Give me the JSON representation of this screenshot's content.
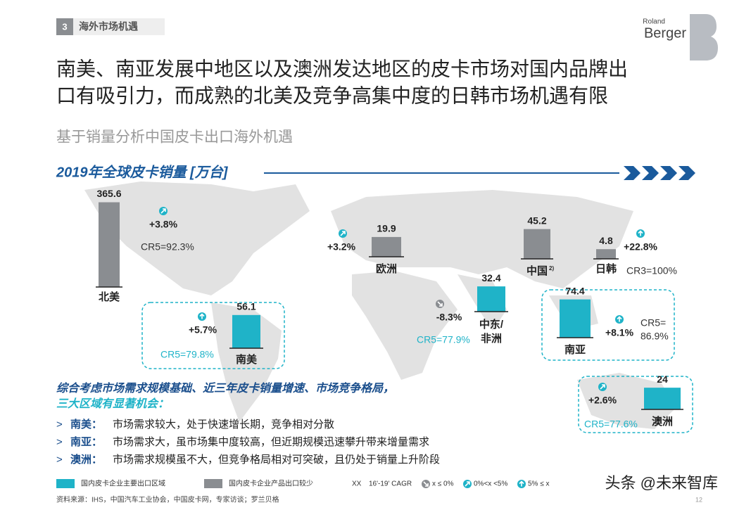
{
  "header": {
    "section_number": "3",
    "section_title": "海外市场机遇",
    "logo_small": "Roland",
    "logo": "Berger"
  },
  "title_lines": [
    "南美、南亚发展中地区以及澳洲发达地区的皮卡市场对国内品牌出",
    "口有吸引力，而成熟的北美及竞争高集中度的日韩市场机遇有限"
  ],
  "subtitle": "基于销量分析中国皮卡出口海外机遇",
  "chart_data": {
    "type": "map-bars",
    "title": "2019年全球皮卡销量 [万台]",
    "regions": [
      {
        "name_lines": [
          "北美"
        ],
        "value": 365.6,
        "cagr": "+3.8%",
        "cagr_class": "mid",
        "cr_lines": [
          "CR5=92.3%"
        ],
        "highlight": false
      },
      {
        "name_lines": [
          "欧洲"
        ],
        "value": 19.9,
        "cagr": "+3.2%",
        "cagr_class": "mid",
        "cr_lines": [],
        "highlight": false
      },
      {
        "name_lines": [
          "中国"
        ],
        "footnote": "2)",
        "value": 45.2,
        "cr_lines": [],
        "highlight": false
      },
      {
        "name_lines": [
          "日韩"
        ],
        "value": 4.8,
        "cagr": "+22.8%",
        "cagr_class": "high",
        "cr_lines": [
          "CR3=100%"
        ],
        "highlight": false
      },
      {
        "name_lines": [
          "南美"
        ],
        "value": 56.1,
        "cagr": "+5.7%",
        "cagr_class": "high",
        "cr_lines": [
          "CR5=79.8%"
        ],
        "highlight": true
      },
      {
        "name_lines": [
          "中东/",
          "非洲"
        ],
        "value": 32.4,
        "cagr": "-8.3%",
        "cagr_class": "low",
        "cr_lines": [
          "CR5=77.9%"
        ],
        "highlight": true
      },
      {
        "name_lines": [
          "南亚"
        ],
        "value": 74.4,
        "cagr": "+8.1%",
        "cagr_class": "high",
        "cr_lines": [
          "CR5=",
          "86.9%"
        ],
        "highlight": true
      },
      {
        "name_lines": [
          "澳洲"
        ],
        "value": 24.0,
        "cagr": "+2.6%",
        "cagr_class": "mid",
        "cr_lines": [
          "CR5=77.6%"
        ],
        "highlight": true
      }
    ],
    "colors": {
      "highlight": "#1fb3c8",
      "normal": "#8a8d91"
    }
  },
  "conclusion": {
    "heading_lines": [
      "综合考虑市场需求规模基础、近三年皮卡销量增速、市场竞争格局，",
      "三大区域有显著机会："
    ],
    "bullets": [
      {
        "region": "南美：",
        "text": "市场需求较大，处于快速增长期，竞争相对分散"
      },
      {
        "region": "南亚：",
        "text": "市场需求大，虽市场集中度较高，但近期规模迅速攀升带来增量需求"
      },
      {
        "region": "澳洲：",
        "text": "市场需求规模虽不大，但竞争格局相对可突破，且仍处于销量上升阶段"
      }
    ]
  },
  "legend": {
    "highlight": "国内皮卡企业主要出口区域",
    "normal": "国内皮卡企业产品出口较少",
    "xx": "XX",
    "cagr": "16'-19' CAGR",
    "low": "x ≤ 0%",
    "mid": "0%<x <5%",
    "high": "5% ≤ x"
  },
  "source": "资料来源：IHS，中国汽车工业协会，中国皮卡网，专家访谈；罗兰贝格",
  "page_number": "12",
  "watermark": "头条 @未来智库"
}
